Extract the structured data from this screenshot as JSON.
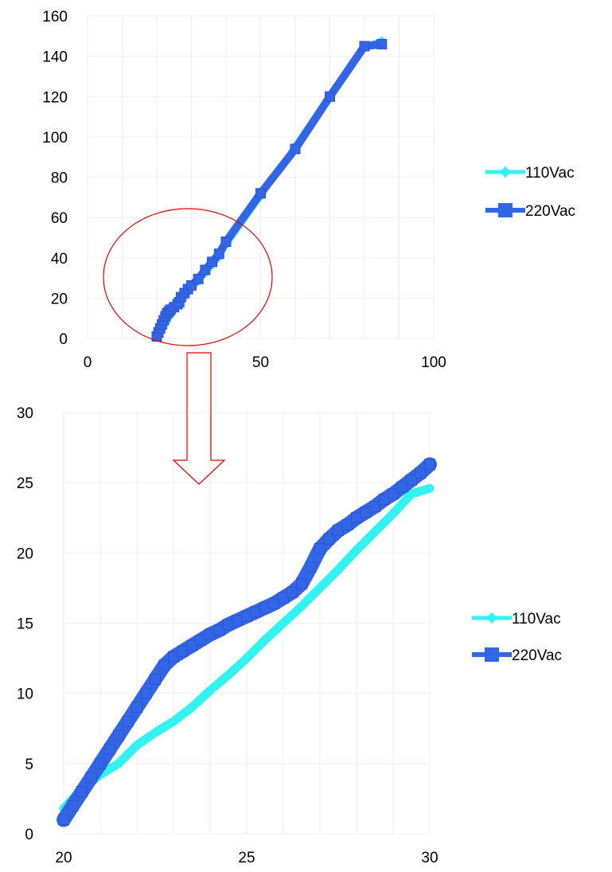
{
  "colors": {
    "series_110": "#33f2f2",
    "series_220": "#3366e6",
    "grid": "#eeeeee",
    "annotation": "#e60000"
  },
  "chart_data": [
    {
      "type": "line",
      "title": "",
      "xlabel": "",
      "ylabel": "",
      "xlim": [
        0,
        100
      ],
      "ylim": [
        0,
        160
      ],
      "x_ticks": [
        "0",
        "50",
        "100"
      ],
      "y_ticks": [
        "0",
        "20",
        "40",
        "60",
        "80",
        "100",
        "120",
        "140",
        "160"
      ],
      "grid": true,
      "legend": "right",
      "series": [
        {
          "name": "110Vac",
          "marker": "diamond",
          "points": [
            [
              20,
              1.8
            ],
            [
              21,
              3.5
            ],
            [
              22,
              5.8
            ],
            [
              23,
              8
            ],
            [
              24,
              11
            ],
            [
              25,
              14
            ],
            [
              26,
              16
            ],
            [
              27,
              18
            ],
            [
              28,
              20
            ],
            [
              29,
              22.5
            ],
            [
              30,
              24.6
            ],
            [
              32,
              28
            ],
            [
              34,
              32
            ],
            [
              36,
              36
            ],
            [
              38,
              40
            ],
            [
              40,
              46
            ],
            [
              50,
              70
            ],
            [
              60,
              96
            ],
            [
              70,
              121
            ],
            [
              80,
              145
            ],
            [
              85,
              148
            ]
          ]
        },
        {
          "name": "220Vac",
          "marker": "square",
          "points": [
            [
              20,
              1
            ],
            [
              20.5,
              3
            ],
            [
              21,
              5
            ],
            [
              21.5,
              7
            ],
            [
              22,
              9
            ],
            [
              22.5,
              11
            ],
            [
              23,
              12.5
            ],
            [
              23.5,
              13.5
            ],
            [
              24,
              14.3
            ],
            [
              25,
              15.5
            ],
            [
              26,
              17
            ],
            [
              26.5,
              18
            ],
            [
              27,
              20.5
            ],
            [
              28,
              22.5
            ],
            [
              29,
              24.5
            ],
            [
              30,
              26.3
            ],
            [
              32,
              29.5
            ],
            [
              34,
              34
            ],
            [
              36,
              38
            ],
            [
              38,
              42
            ],
            [
              40,
              48
            ],
            [
              50,
              72
            ],
            [
              60,
              94
            ],
            [
              70,
              120
            ],
            [
              80,
              145
            ],
            [
              85,
              146
            ]
          ]
        }
      ]
    },
    {
      "type": "line",
      "title": "",
      "xlabel": "",
      "ylabel": "",
      "xlim": [
        20,
        30
      ],
      "ylim": [
        0,
        30
      ],
      "x_ticks": [
        "20",
        "25",
        "30"
      ],
      "y_ticks": [
        "0",
        "5",
        "10",
        "15",
        "20",
        "25",
        "30"
      ],
      "grid": true,
      "legend": "right",
      "series": [
        {
          "name": "110Vac",
          "marker": "diamond",
          "points": [
            [
              20,
              1.8
            ],
            [
              20.5,
              3.2
            ],
            [
              21,
              4.2
            ],
            [
              21.5,
              5
            ],
            [
              22,
              6.3
            ],
            [
              22.5,
              7.2
            ],
            [
              23,
              8
            ],
            [
              23.5,
              9
            ],
            [
              24,
              10.2
            ],
            [
              24.5,
              11.3
            ],
            [
              25,
              12.5
            ],
            [
              25.5,
              13.8
            ],
            [
              26,
              15
            ],
            [
              26.5,
              16.2
            ],
            [
              27,
              17.5
            ],
            [
              27.5,
              18.8
            ],
            [
              28,
              20.2
            ],
            [
              28.5,
              21.5
            ],
            [
              29,
              22.8
            ],
            [
              29.5,
              24.2
            ],
            [
              30,
              24.6
            ]
          ]
        },
        {
          "name": "220Vac",
          "marker": "square",
          "points": [
            [
              20,
              1
            ],
            [
              20.25,
              2
            ],
            [
              20.5,
              3
            ],
            [
              20.75,
              4
            ],
            [
              21,
              5
            ],
            [
              21.25,
              6
            ],
            [
              21.5,
              7
            ],
            [
              21.75,
              8
            ],
            [
              22,
              9
            ],
            [
              22.25,
              10
            ],
            [
              22.5,
              11
            ],
            [
              22.75,
              12
            ],
            [
              23,
              12.6
            ],
            [
              23.25,
              13
            ],
            [
              23.5,
              13.4
            ],
            [
              23.75,
              13.8
            ],
            [
              24,
              14.2
            ],
            [
              24.25,
              14.5
            ],
            [
              24.5,
              14.9
            ],
            [
              24.75,
              15.2
            ],
            [
              25,
              15.5
            ],
            [
              25.25,
              15.8
            ],
            [
              25.5,
              16.1
            ],
            [
              25.75,
              16.4
            ],
            [
              26,
              16.8
            ],
            [
              26.25,
              17.2
            ],
            [
              26.5,
              17.8
            ],
            [
              26.75,
              19
            ],
            [
              27,
              20.3
            ],
            [
              27.25,
              21
            ],
            [
              27.5,
              21.6
            ],
            [
              27.75,
              22
            ],
            [
              28,
              22.5
            ],
            [
              28.25,
              22.9
            ],
            [
              28.5,
              23.3
            ],
            [
              28.75,
              23.8
            ],
            [
              29,
              24.2
            ],
            [
              29.25,
              24.7
            ],
            [
              29.5,
              25.2
            ],
            [
              29.75,
              25.7
            ],
            [
              30,
              26.3
            ]
          ]
        }
      ]
    }
  ]
}
